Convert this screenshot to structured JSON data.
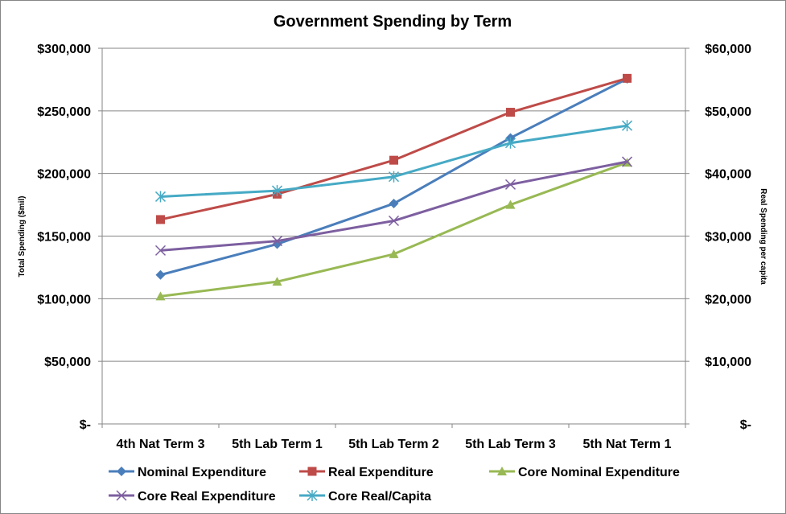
{
  "chart_data": {
    "type": "line",
    "title": "Government Spending by Term",
    "ylabel": "Total Spending ($mil)",
    "y2label": "Real Spending per capita",
    "categories": [
      "4th Nat Term 3",
      "5th Lab Term 1",
      "5th Lab Term 2",
      "5th Lab Term 3",
      "5th Nat Term 1"
    ],
    "ylim": [
      0,
      300000
    ],
    "y2lim": [
      0,
      60000
    ],
    "yticks": [
      "$-",
      "$50,000",
      "$100,000",
      "$150,000",
      "$200,000",
      "$250,000",
      "$300,000"
    ],
    "y2ticks": [
      "$-",
      "$10,000",
      "$20,000",
      "$30,000",
      "$40,000",
      "$50,000",
      "$60,000"
    ],
    "grid": true,
    "legend": "bottom",
    "series": [
      {
        "name": "Nominal Expenditure",
        "axis": "left",
        "color": "#4a7ebb",
        "marker": "diamond",
        "values": [
          119000,
          143600,
          176000,
          228400,
          275600
        ]
      },
      {
        "name": "Real Expenditure",
        "axis": "left",
        "color": "#be4b48",
        "marker": "square",
        "values": [
          163200,
          183500,
          210600,
          248900,
          276000
        ]
      },
      {
        "name": "Core Nominal Expenditure",
        "axis": "left",
        "color": "#98b954",
        "marker": "triangle",
        "values": [
          101900,
          113600,
          135600,
          175000,
          208700
        ]
      },
      {
        "name": "Core Real Expenditure",
        "axis": "left",
        "color": "#7d5fa0",
        "marker": "x",
        "values": [
          138500,
          146100,
          162200,
          191200,
          209400
        ]
      },
      {
        "name": "Core Real/Capita",
        "axis": "right",
        "color": "#46aac5",
        "marker": "star",
        "values": [
          36300,
          37250,
          39480,
          44870,
          47640
        ]
      }
    ]
  }
}
